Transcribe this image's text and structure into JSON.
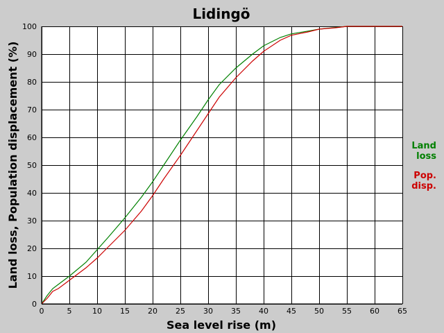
{
  "chart_data": {
    "type": "line",
    "title": "Lidingö",
    "xlabel": "Sea level rise (m)",
    "ylabel": "Land loss, Population displacement (%)",
    "xlim": [
      0,
      65
    ],
    "ylim": [
      0,
      100
    ],
    "xticks": [
      0,
      5,
      10,
      15,
      20,
      25,
      30,
      35,
      40,
      45,
      50,
      55,
      60,
      65
    ],
    "yticks": [
      0,
      10,
      20,
      30,
      40,
      50,
      60,
      70,
      80,
      90,
      100
    ],
    "grid": true,
    "legend_position": "right",
    "series": [
      {
        "name": "Land loss",
        "legend_lines": [
          "Land",
          "loss"
        ],
        "color": "#008000",
        "x": [
          0,
          1,
          2,
          3,
          5,
          8,
          10,
          12,
          15,
          18,
          20,
          22,
          25,
          28,
          30,
          32,
          35,
          38,
          40,
          43,
          45,
          48,
          50,
          53,
          55,
          60,
          65
        ],
        "y": [
          0,
          3,
          5.5,
          7,
          10,
          15,
          19.5,
          24,
          31,
          38.5,
          44,
          50,
          59,
          67.5,
          73.5,
          79,
          85,
          90,
          93,
          96,
          97.3,
          98.3,
          99,
          99.6,
          100,
          100,
          100
        ]
      },
      {
        "name": "Pop. disp.",
        "legend_lines": [
          "Pop.",
          "disp."
        ],
        "color": "#cc0000",
        "x": [
          0,
          1,
          2,
          3,
          5,
          8,
          10,
          12,
          15,
          18,
          20,
          22,
          25,
          28,
          30,
          32,
          35,
          38,
          40,
          43,
          45,
          48,
          50,
          53,
          55,
          60,
          65
        ],
        "y": [
          0,
          2,
          4.5,
          5.5,
          8.5,
          13,
          16.5,
          20.5,
          26.5,
          33.5,
          39,
          45,
          53.5,
          62.5,
          68.5,
          74.5,
          81.5,
          87.5,
          91,
          95,
          96.8,
          98,
          99,
          99.5,
          100,
          100,
          100
        ]
      }
    ]
  }
}
